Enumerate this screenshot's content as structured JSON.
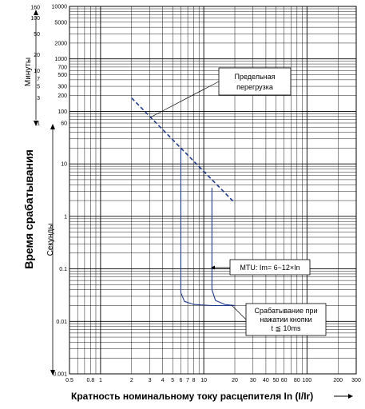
{
  "chart_data": {
    "type": "line",
    "x_scale": "log",
    "y_scale": "log",
    "xlim": [
      0.5,
      300
    ],
    "ylim": [
      0.001,
      10000
    ],
    "grid": true,
    "xlabel": "Кратность номинальному току расцепителя In (I/Ir)",
    "ylabel": "Время срабатывания",
    "y_sublabels": {
      "minutes": "Минуты",
      "seconds": "Секунды"
    },
    "x_ticks": [
      {
        "v": 0.5,
        "t": "0.5"
      },
      {
        "v": 0.8,
        "t": "0.8"
      },
      {
        "v": 1,
        "t": "1"
      },
      {
        "v": 2,
        "t": "2"
      },
      {
        "v": 3,
        "t": "3"
      },
      {
        "v": 4,
        "t": "4"
      },
      {
        "v": 5,
        "t": "5"
      },
      {
        "v": 6,
        "t": "6"
      },
      {
        "v": 7,
        "t": "7"
      },
      {
        "v": 8,
        "t": "8"
      },
      {
        "v": 10,
        "t": "10"
      },
      {
        "v": 20,
        "t": "20"
      },
      {
        "v": 30,
        "t": "30"
      },
      {
        "v": 40,
        "t": "40"
      },
      {
        "v": 50,
        "t": "50"
      },
      {
        "v": 60,
        "t": "60"
      },
      {
        "v": 80,
        "t": "80"
      },
      {
        "v": 100,
        "t": "100"
      },
      {
        "v": 200,
        "t": "200"
      },
      {
        "v": 300,
        "t": "300"
      }
    ],
    "y_ticks_seconds": [
      {
        "v": 10000,
        "t": "10000"
      },
      {
        "v": 5000,
        "t": "5000"
      },
      {
        "v": 2000,
        "t": "2000"
      },
      {
        "v": 1000,
        "t": "1000"
      },
      {
        "v": 700,
        "t": "700"
      },
      {
        "v": 500,
        "t": "500"
      },
      {
        "v": 300,
        "t": "300"
      },
      {
        "v": 200,
        "t": "200"
      },
      {
        "v": 100,
        "t": "100"
      },
      {
        "v": 60,
        "t": "60"
      },
      {
        "v": 10,
        "t": "10"
      },
      {
        "v": 1,
        "t": "1"
      },
      {
        "v": 0.1,
        "t": "0.1"
      },
      {
        "v": 0.01,
        "t": "0.01"
      },
      {
        "v": 0.001,
        "t": "0.001"
      }
    ],
    "y_ticks_minutes": [
      {
        "v": 9600,
        "t": "160"
      },
      {
        "v": 6000,
        "t": "100"
      },
      {
        "v": 3000,
        "t": "50"
      },
      {
        "v": 1200,
        "t": "20"
      },
      {
        "v": 600,
        "t": "10"
      },
      {
        "v": 420,
        "t": "7"
      },
      {
        "v": 300,
        "t": "5"
      },
      {
        "v": 180,
        "t": "3"
      },
      {
        "v": 60,
        "t": "1"
      }
    ],
    "series": [
      {
        "name": "Предельная перегрузка",
        "style": "dashed",
        "color": "#1f3a8a",
        "points": [
          [
            2,
            180
          ],
          [
            20,
            1.8
          ]
        ]
      },
      {
        "name": "",
        "style": "solid",
        "color": "#1f3a8a",
        "points": [
          [
            6,
            20
          ],
          [
            6,
            0.035
          ],
          [
            6.5,
            0.024
          ],
          [
            8,
            0.021
          ],
          [
            12,
            0.02
          ],
          [
            20,
            0.02
          ]
        ]
      },
      {
        "name": "",
        "style": "solid",
        "color": "#1f3a8a",
        "points": [
          [
            12,
            3.5
          ],
          [
            12,
            0.04
          ],
          [
            13,
            0.025
          ],
          [
            16,
            0.021
          ],
          [
            20,
            0.02
          ]
        ]
      }
    ],
    "annotations": {
      "overload": [
        "Предельная",
        "перегрузка"
      ],
      "mtu": "MTU: Im= 6~12×In",
      "instant": [
        "Срабатывание при",
        "нажатии кнопки",
        "t ≦ 10ms"
      ]
    }
  }
}
